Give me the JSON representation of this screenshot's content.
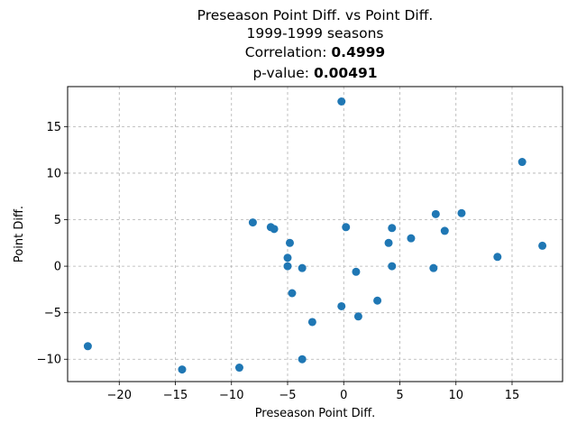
{
  "chart_data": {
    "type": "scatter",
    "title_lines": [
      "Preseason Point Diff. vs Point Diff.",
      "1999-1999 seasons"
    ],
    "correlation_label": "Correlation: ",
    "correlation_value": "0.4999",
    "pvalue_label": "p-value: ",
    "pvalue_value": "0.00491",
    "xlabel": "Preseason Point Diff.",
    "ylabel": "Point Diff.",
    "xlim": [
      -24.6,
      19.5
    ],
    "ylim": [
      -12.4,
      19.3
    ],
    "xticks": [
      -20,
      -15,
      -10,
      -5,
      0,
      5,
      10,
      15
    ],
    "yticks": [
      -10,
      -5,
      0,
      5,
      10,
      15
    ],
    "grid": true,
    "marker_color": "#1f77b4",
    "points": [
      {
        "x": -0.2,
        "y": 17.7
      },
      {
        "x": 15.9,
        "y": 11.2
      },
      {
        "x": -8.1,
        "y": 4.7
      },
      {
        "x": -6.5,
        "y": 4.2
      },
      {
        "x": -6.2,
        "y": 4.0
      },
      {
        "x": 0.2,
        "y": 4.2
      },
      {
        "x": 4.3,
        "y": 4.1
      },
      {
        "x": 8.2,
        "y": 5.6
      },
      {
        "x": 10.5,
        "y": 5.7
      },
      {
        "x": 9.0,
        "y": 3.8
      },
      {
        "x": 6.0,
        "y": 3.0
      },
      {
        "x": -4.8,
        "y": 2.5
      },
      {
        "x": 4.0,
        "y": 2.5
      },
      {
        "x": 17.7,
        "y": 2.2
      },
      {
        "x": 13.7,
        "y": 1.0
      },
      {
        "x": -5.0,
        "y": 0.9
      },
      {
        "x": -5.0,
        "y": 0.0
      },
      {
        "x": -3.7,
        "y": -0.2
      },
      {
        "x": 4.3,
        "y": 0.0
      },
      {
        "x": 8.0,
        "y": -0.2
      },
      {
        "x": 1.1,
        "y": -0.6
      },
      {
        "x": -4.6,
        "y": -2.9
      },
      {
        "x": 3.0,
        "y": -3.7
      },
      {
        "x": -0.2,
        "y": -4.3
      },
      {
        "x": 1.3,
        "y": -5.4
      },
      {
        "x": -2.8,
        "y": -6.0
      },
      {
        "x": -22.8,
        "y": -8.6
      },
      {
        "x": -3.7,
        "y": -10.0
      },
      {
        "x": -9.3,
        "y": -10.9
      },
      {
        "x": -14.4,
        "y": -11.1
      }
    ]
  }
}
